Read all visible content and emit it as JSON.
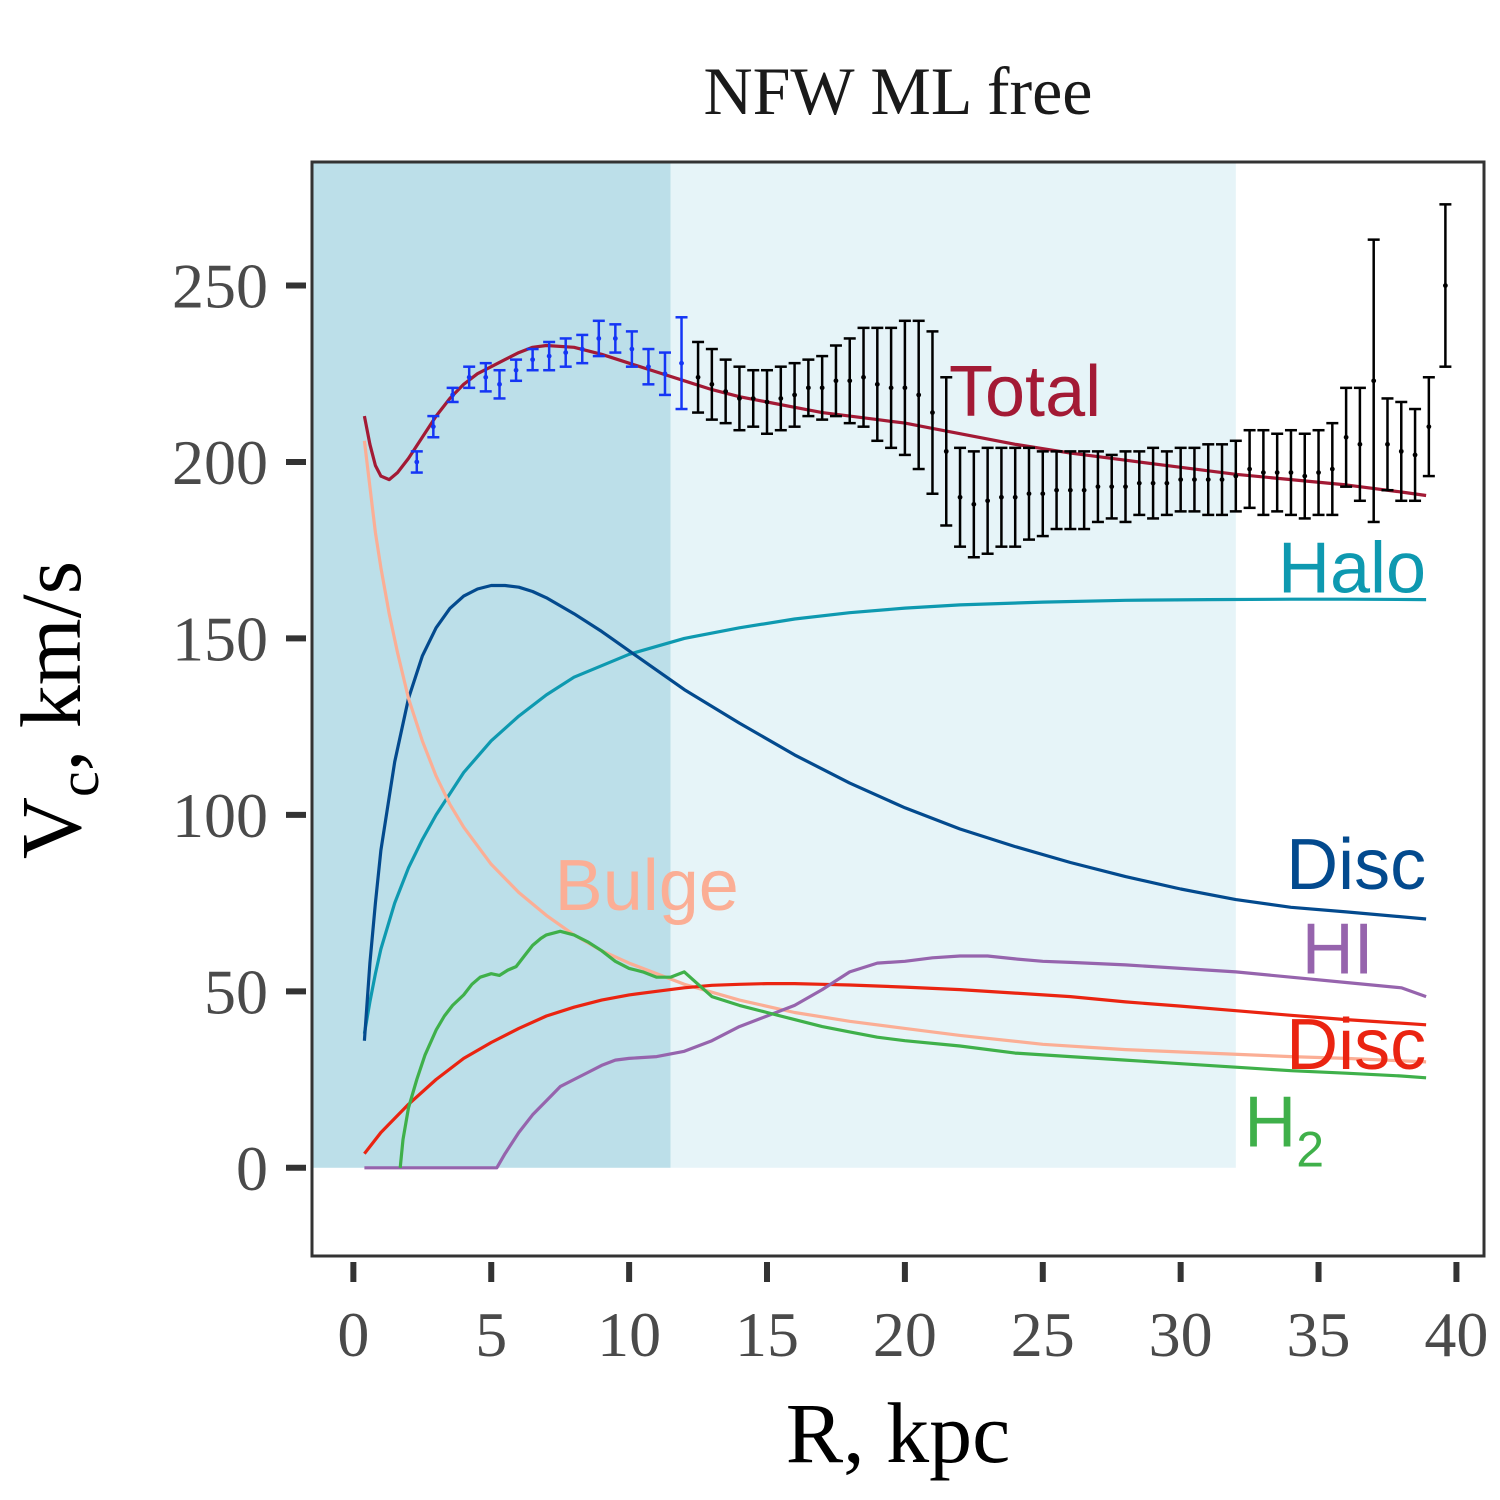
{
  "chart_data": {
    "type": "line",
    "title": "NFW ML free",
    "xlabel": "R, kpc",
    "ylabel_main": "V",
    "ylabel_sub": "c",
    "ylabel_rest": ", km/s",
    "xlim": [
      -1.5,
      41
    ],
    "ylim": [
      -25,
      285
    ],
    "xticks": [
      0,
      5,
      10,
      15,
      20,
      25,
      30,
      35,
      40
    ],
    "yticks": [
      0,
      50,
      100,
      150,
      200,
      250
    ],
    "regions": [
      {
        "x0": -1.5,
        "x1": 11.5,
        "y0": 0,
        "y1": 285,
        "color": "#bcdfe9"
      },
      {
        "x0": 11.5,
        "x1": 32.0,
        "y0": 0,
        "y1": 285,
        "color": "#e6f4f8"
      }
    ],
    "colors": {
      "total": "#a31a35",
      "halo": "#0e99b0",
      "disc_stellar": "#034a8e",
      "bulge": "#fbae95",
      "hi": "#9664ad",
      "disc_gas": "#ea2411",
      "h2": "#3fb04a",
      "obs_inner": "#1536f5",
      "obs_outer": "#000000"
    },
    "series": [
      {
        "name": "Total",
        "key": "total",
        "x": [
          0.4,
          0.6,
          0.8,
          1.0,
          1.3,
          1.6,
          2,
          2.5,
          3,
          3.5,
          4,
          4.5,
          5,
          5.5,
          6,
          6.5,
          7,
          8,
          9,
          10,
          11,
          12,
          13,
          14,
          15,
          16,
          17,
          18,
          19,
          20,
          21,
          22,
          24,
          26,
          28,
          30,
          32,
          34,
          36,
          38,
          38.9
        ],
        "y": [
          213,
          205,
          199,
          196,
          195,
          197,
          201,
          207,
          213,
          218,
          222,
          225,
          227,
          229,
          231,
          232.5,
          233,
          232.5,
          230.5,
          228,
          225.5,
          223,
          220.5,
          218.5,
          217,
          215.5,
          214,
          213,
          212,
          211,
          209.5,
          208,
          205,
          202.5,
          200.5,
          198.5,
          196.5,
          195,
          193.5,
          191.5,
          190.5
        ]
      },
      {
        "name": "Halo",
        "key": "halo",
        "x": [
          0.4,
          0.6,
          0.8,
          1,
          1.5,
          2,
          2.5,
          3,
          4,
          5,
          6,
          7,
          8,
          10,
          12,
          14,
          16,
          18,
          20,
          22,
          25,
          28,
          31,
          34,
          36,
          38.9
        ],
        "y": [
          38,
          47,
          55,
          62,
          75,
          85,
          93,
          100,
          112,
          121,
          128,
          134,
          139,
          145.5,
          150,
          153,
          155.5,
          157.3,
          158.6,
          159.5,
          160.3,
          160.8,
          161,
          161.1,
          161.1,
          161
        ]
      },
      {
        "name": "Disc",
        "key": "disc_stellar",
        "x": [
          0.4,
          0.6,
          0.8,
          1,
          1.5,
          2,
          2.5,
          3,
          3.5,
          4,
          4.5,
          5,
          5.5,
          6,
          6.5,
          7,
          8,
          9,
          10,
          11,
          12,
          14,
          16,
          18,
          20,
          22,
          24,
          26,
          28,
          30,
          32,
          34,
          36,
          38.9
        ],
        "y": [
          36,
          58,
          75,
          90,
          115,
          133,
          145,
          153,
          158.5,
          162,
          164,
          165,
          165,
          164.5,
          163.3,
          161.5,
          157,
          152,
          146.5,
          141,
          135.5,
          126,
          117,
          109,
          102,
          96,
          91,
          86.5,
          82.5,
          79,
          76,
          73.8,
          72.5,
          70.5
        ]
      },
      {
        "name": "Bulge",
        "key": "bulge",
        "x": [
          0.4,
          0.6,
          0.8,
          1,
          1.3,
          1.6,
          2,
          2.5,
          3,
          3.5,
          4,
          5,
          6,
          7,
          8,
          9,
          10,
          12,
          14,
          16,
          18,
          20,
          22,
          25,
          28,
          31,
          34,
          36,
          38.9
        ],
        "y": [
          206,
          193,
          180,
          170,
          157,
          146,
          133,
          121,
          111,
          103,
          96.5,
          86,
          78,
          71.5,
          66,
          61.5,
          58,
          52,
          47.5,
          44,
          41.5,
          39.5,
          37.5,
          35,
          33.5,
          32.5,
          31.5,
          31,
          30
        ]
      },
      {
        "name": "Disc",
        "key": "disc_gas",
        "x": [
          0.4,
          1,
          2,
          3,
          4,
          5,
          6,
          7,
          8,
          9,
          10,
          11,
          12,
          13,
          14,
          15,
          16,
          17,
          18,
          20,
          22,
          24,
          26,
          28,
          30,
          32,
          34,
          36,
          38.9
        ],
        "y": [
          4,
          10,
          18,
          25,
          31,
          35.5,
          39.5,
          43,
          45.5,
          47.5,
          49,
          50,
          51,
          51.7,
          52,
          52.2,
          52.2,
          52,
          51.8,
          51.2,
          50.5,
          49.5,
          48.5,
          47,
          45.8,
          44.5,
          43.2,
          42,
          40.5
        ]
      },
      {
        "name": "HI",
        "key": "hi",
        "x": [
          0.4,
          2,
          4,
          5.2,
          5.5,
          6,
          6.5,
          7,
          7.5,
          8,
          8.5,
          9,
          9.5,
          10,
          11,
          12,
          13,
          14,
          15,
          16,
          17,
          18,
          19,
          20,
          21,
          22,
          23,
          24,
          25,
          26,
          28,
          30,
          32,
          34,
          36,
          38,
          38.9
        ],
        "y": [
          0,
          0,
          0,
          0,
          4,
          10,
          15,
          19,
          23,
          25,
          27,
          29,
          30.5,
          31,
          31.5,
          33,
          36,
          40,
          43,
          46,
          50.5,
          55.5,
          58,
          58.5,
          59.5,
          60,
          60,
          59.2,
          58.5,
          58.2,
          57.5,
          56.5,
          55.5,
          54,
          52.5,
          51,
          48.5
        ]
      },
      {
        "name": "H2",
        "key": "h2",
        "x": [
          1.7,
          1.8,
          2,
          2.3,
          2.6,
          3,
          3.3,
          3.6,
          4,
          4.3,
          4.6,
          5,
          5.3,
          5.6,
          5.9,
          6.2,
          6.5,
          6.8,
          7,
          7.5,
          8,
          8.5,
          9,
          9.5,
          10,
          10.5,
          11,
          11.5,
          12,
          12.5,
          13,
          14,
          15,
          16,
          17,
          18,
          19,
          20,
          22,
          24,
          26,
          28,
          30,
          32,
          34,
          36,
          38,
          38.9
        ],
        "y": [
          0,
          8,
          17,
          25,
          32,
          39,
          43,
          46,
          49,
          52,
          54,
          55,
          54.5,
          56,
          57,
          60,
          63,
          65,
          66,
          67,
          66,
          64,
          61.5,
          58.5,
          56.5,
          55.5,
          54,
          54,
          55.5,
          52,
          48.5,
          46,
          44,
          42,
          40,
          38.5,
          37,
          36,
          34.5,
          32.5,
          31.5,
          30.5,
          29.5,
          28.5,
          27.5,
          26.8,
          26,
          25.5
        ]
      }
    ],
    "observations": [
      {
        "name": "inner",
        "key": "obs_inner",
        "points": [
          [
            2.3,
            200,
            3
          ],
          [
            2.9,
            210,
            3
          ],
          [
            3.6,
            219,
            2
          ],
          [
            4.2,
            224,
            3
          ],
          [
            4.8,
            224,
            4
          ],
          [
            5.3,
            222,
            4
          ],
          [
            5.9,
            226,
            3
          ],
          [
            6.5,
            229,
            3
          ],
          [
            7.1,
            230,
            4
          ],
          [
            7.7,
            231,
            4
          ],
          [
            8.3,
            232,
            4
          ],
          [
            8.9,
            235,
            5
          ],
          [
            9.5,
            235,
            4
          ],
          [
            10.1,
            232,
            5
          ],
          [
            10.7,
            227,
            5
          ],
          [
            11.3,
            225,
            6
          ],
          [
            11.9,
            228,
            13
          ]
        ]
      },
      {
        "name": "outer",
        "key": "obs_outer",
        "points": [
          [
            12.5,
            224,
            10
          ],
          [
            13.0,
            222,
            10
          ],
          [
            13.5,
            220,
            9
          ],
          [
            14.0,
            218,
            9
          ],
          [
            14.5,
            218,
            8
          ],
          [
            15.0,
            217,
            9
          ],
          [
            15.5,
            218,
            9
          ],
          [
            16.0,
            219,
            9
          ],
          [
            16.5,
            221,
            8
          ],
          [
            17.0,
            221,
            9
          ],
          [
            17.5,
            223,
            10
          ],
          [
            18.0,
            223,
            12
          ],
          [
            18.5,
            224,
            14
          ],
          [
            19.0,
            222,
            16
          ],
          [
            19.5,
            221,
            17
          ],
          [
            20.0,
            221,
            19
          ],
          [
            20.5,
            219,
            21
          ],
          [
            21.0,
            214,
            23
          ],
          [
            21.5,
            203,
            21
          ],
          [
            22.0,
            190,
            14
          ],
          [
            22.5,
            188,
            15
          ],
          [
            23.0,
            189,
            15
          ],
          [
            23.5,
            190,
            14
          ],
          [
            24.0,
            190,
            14
          ],
          [
            24.5,
            191,
            13
          ],
          [
            25.0,
            191,
            12
          ],
          [
            25.5,
            192,
            11
          ],
          [
            26.0,
            192,
            11
          ],
          [
            26.5,
            192,
            11
          ],
          [
            27.0,
            193,
            10
          ],
          [
            27.5,
            193,
            9
          ],
          [
            28.0,
            193,
            10
          ],
          [
            28.5,
            194,
            9
          ],
          [
            29.0,
            194,
            10
          ],
          [
            29.5,
            194,
            9
          ],
          [
            30.0,
            195,
            9
          ],
          [
            30.5,
            195,
            9
          ],
          [
            31.0,
            195,
            10
          ],
          [
            31.5,
            195,
            10
          ],
          [
            32.0,
            196,
            10
          ],
          [
            32.5,
            198,
            11
          ],
          [
            33.0,
            197,
            12
          ],
          [
            33.5,
            197,
            11
          ],
          [
            34.0,
            197,
            12
          ],
          [
            34.5,
            196,
            12
          ],
          [
            35.0,
            197,
            12
          ],
          [
            35.5,
            198,
            13
          ],
          [
            36.0,
            207,
            14
          ],
          [
            36.5,
            205,
            16
          ],
          [
            37.0,
            223,
            40
          ],
          [
            37.5,
            205,
            13
          ],
          [
            38.0,
            203,
            14
          ],
          [
            38.5,
            202,
            13
          ],
          [
            39.0,
            210,
            14
          ],
          [
            39.6,
            250,
            23
          ]
        ]
      }
    ],
    "labels": [
      {
        "key": "total",
        "text": "Total",
        "x": 21.6,
        "y": 213,
        "anchor": "start"
      },
      {
        "key": "halo",
        "text": "Halo",
        "x": 38.9,
        "y": 163,
        "anchor": "end"
      },
      {
        "key": "disc_stellar",
        "text": "Disc",
        "x": 38.9,
        "y": 79,
        "anchor": "end"
      },
      {
        "key": "bulge",
        "text": "Bulge",
        "x": 7.3,
        "y": 73,
        "anchor": "start"
      },
      {
        "key": "hi",
        "text": "HI",
        "x": 37.0,
        "y": 55,
        "anchor": "end"
      },
      {
        "key": "disc_gas",
        "text": "Disc",
        "x": 38.9,
        "y": 28,
        "anchor": "end"
      },
      {
        "key": "h2",
        "text": "H",
        "sub": "2",
        "x": 35.2,
        "y": 6,
        "anchor": "end"
      }
    ]
  }
}
